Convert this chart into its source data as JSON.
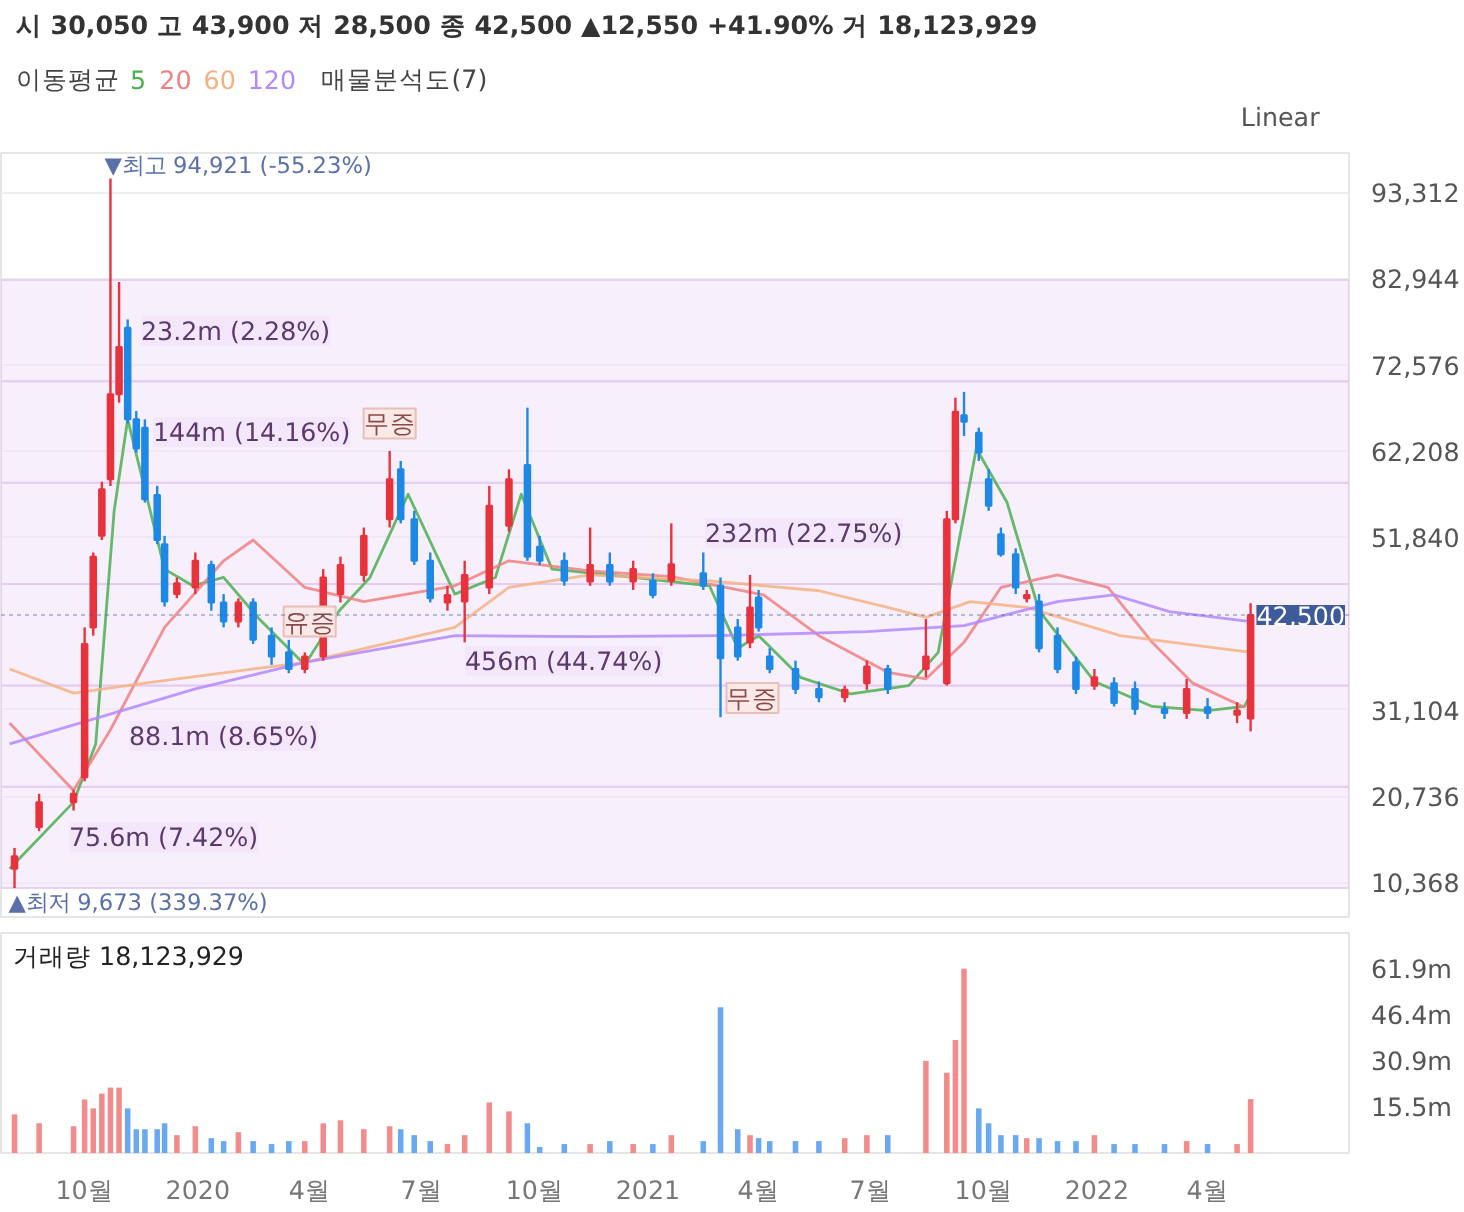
{
  "chart_data": [
    {
      "type": "candlestick",
      "subtitle": "시 30,050 고 43,900 저 28,500 종 42,500 ▲12,550 +41.90% 거 18,123,929",
      "legend_title": "이동평균",
      "legend": "top left",
      "grid": "y",
      "tick_labels": "y",
      "x": [
        "2019-08-05",
        "2019-08-25",
        "2019-09-22",
        "2019-10-01",
        "2019-10-08",
        "2019-10-15",
        "2019-10-22",
        "2019-10-29",
        "2019-11-05",
        "2019-11-12",
        "2019-11-19",
        "2019-11-29",
        "2019-12-05",
        "2019-12-15",
        "2019-12-30",
        "2020-01-12",
        "2020-01-22",
        "2020-02-03",
        "2020-02-15",
        "2020-03-01",
        "2020-03-15",
        "2020-03-28",
        "2020-04-12",
        "2020-04-26",
        "2020-05-15",
        "2020-06-05",
        "2020-06-14",
        "2020-06-25",
        "2020-07-08",
        "2020-07-22",
        "2020-08-05",
        "2020-08-25",
        "2020-09-10",
        "2020-09-25",
        "2020-10-05",
        "2020-10-25",
        "2020-11-15",
        "2020-12-01",
        "2020-12-20",
        "2021-01-05",
        "2021-01-20",
        "2021-02-15",
        "2021-03-01",
        "2021-03-15",
        "2021-03-25",
        "2021-04-01",
        "2021-04-10",
        "2021-05-01",
        "2021-05-20",
        "2021-06-10",
        "2021-06-28",
        "2021-07-15",
        "2021-08-15",
        "2021-09-01",
        "2021-09-08",
        "2021-09-15",
        "2021-09-27",
        "2021-10-05",
        "2021-10-15",
        "2021-10-27",
        "2021-11-05",
        "2021-11-15",
        "2021-11-30",
        "2021-12-15",
        "2021-12-30",
        "2022-01-15",
        "2022-02-01",
        "2022-02-25",
        "2022-03-15",
        "2022-04-01",
        "2022-04-25",
        "2022-05-06"
      ],
      "ohlc": [
        [
          12000,
          14500,
          9673,
          13500
        ],
        [
          17000,
          21000,
          16500,
          20000
        ],
        [
          20000,
          21500,
          19000,
          21000
        ],
        [
          23000,
          41000,
          22500,
          39000
        ],
        [
          41000,
          50000,
          40000,
          49500
        ],
        [
          52000,
          58500,
          51500,
          57600
        ],
        [
          58800,
          94921,
          58000,
          69000
        ],
        [
          69000,
          82500,
          68000,
          74700
        ],
        [
          77000,
          78000,
          65500,
          66000
        ],
        [
          66000,
          67000,
          62000,
          62500
        ],
        [
          65000,
          66000,
          56000,
          56400
        ],
        [
          56900,
          58000,
          51000,
          51500
        ],
        [
          51000,
          52000,
          43500,
          44100
        ],
        [
          45000,
          47000,
          44500,
          46300
        ],
        [
          45800,
          50000,
          45000,
          49000
        ],
        [
          48500,
          49000,
          43000,
          44000
        ],
        [
          44000,
          45000,
          41000,
          41700
        ],
        [
          41700,
          44500,
          41000,
          44000
        ],
        [
          44000,
          44500,
          39000,
          39500
        ],
        [
          40000,
          41000,
          36500,
          37500
        ],
        [
          38000,
          39500,
          35500,
          36000
        ],
        [
          36000,
          38000,
          35500,
          37500
        ],
        [
          37500,
          48000,
          37000,
          47000
        ],
        [
          45000,
          49500,
          44000,
          48500
        ],
        [
          47300,
          53000,
          46500,
          52000
        ],
        [
          54000,
          62200,
          53000,
          58800
        ],
        [
          60000,
          61000,
          53500,
          54000
        ],
        [
          54000,
          55000,
          48500,
          49000
        ],
        [
          49000,
          50000,
          44000,
          44500
        ],
        [
          44000,
          46000,
          43000,
          44900
        ],
        [
          44100,
          49000,
          39200,
          47300
        ],
        [
          45800,
          58000,
          45000,
          55600
        ],
        [
          53200,
          60000,
          52500,
          58800
        ],
        [
          60500,
          67400,
          49000,
          49500
        ],
        [
          50700,
          52000,
          48500,
          49000
        ],
        [
          49000,
          50000,
          46000,
          46600
        ],
        [
          46500,
          53000,
          46000,
          48500
        ],
        [
          48500,
          50000,
          46000,
          46500
        ],
        [
          46500,
          49000,
          45500,
          48000
        ],
        [
          46600,
          47500,
          44500,
          44900
        ],
        [
          46600,
          53500,
          46000,
          48600
        ],
        [
          47500,
          50000,
          45500,
          46000
        ],
        [
          46000,
          47000,
          30200,
          37300
        ],
        [
          41000,
          42000,
          37000,
          37500
        ],
        [
          39200,
          47300,
          38500,
          43400
        ],
        [
          44600,
          45500,
          40500,
          41000
        ],
        [
          37500,
          38500,
          35500,
          36000
        ],
        [
          36000,
          37000,
          33000,
          33600
        ],
        [
          33600,
          34500,
          32000,
          32600
        ],
        [
          32600,
          34000,
          32000,
          33500
        ],
        [
          34300,
          37000,
          33500,
          36300
        ],
        [
          36000,
          36500,
          33000,
          33600
        ],
        [
          36000,
          42000,
          35000,
          37500
        ],
        [
          34300,
          55000,
          34000,
          54000
        ],
        [
          54000,
          68600,
          53500,
          66900
        ],
        [
          66500,
          69300,
          64000,
          65700
        ],
        [
          64400,
          65000,
          61000,
          62000
        ],
        [
          58800,
          60000,
          55000,
          55600
        ],
        [
          52200,
          53000,
          49500,
          49800
        ],
        [
          49800,
          50500,
          45000,
          45800
        ],
        [
          44500,
          45500,
          44000,
          44900
        ],
        [
          44100,
          45000,
          38000,
          38500
        ],
        [
          40000,
          41000,
          35500,
          36000
        ],
        [
          36800,
          37500,
          33000,
          33600
        ],
        [
          34000,
          36000,
          33500,
          35000
        ],
        [
          34300,
          35000,
          31500,
          31900
        ],
        [
          33600,
          34500,
          30500,
          31200
        ],
        [
          31200,
          32000,
          30000,
          30700
        ],
        [
          30700,
          34800,
          30000,
          33600
        ],
        [
          31400,
          32500,
          30000,
          30700
        ],
        [
          30500,
          32000,
          29500,
          31000
        ],
        [
          30050,
          43900,
          28500,
          42500
        ]
      ],
      "colors": [
        "#e8323c",
        "#e8323c",
        "#e8323c",
        "#e8323c",
        "#e8323c",
        "#e8323c",
        "#e8323c",
        "#e8323c",
        "#1e88e5",
        "#1e88e5",
        "#1e88e5",
        "#1e88e5",
        "#1e88e5",
        "#e8323c",
        "#e8323c",
        "#1e88e5",
        "#1e88e5",
        "#e8323c",
        "#1e88e5",
        "#1e88e5",
        "#1e88e5",
        "#e8323c",
        "#e8323c",
        "#e8323c",
        "#e8323c",
        "#e8323c",
        "#1e88e5",
        "#1e88e5",
        "#1e88e5",
        "#e8323c",
        "#e8323c",
        "#e8323c",
        "#e8323c",
        "#1e88e5",
        "#1e88e5",
        "#1e88e5",
        "#e8323c",
        "#1e88e5",
        "#e8323c",
        "#1e88e5",
        "#e8323c",
        "#1e88e5",
        "#1e88e5",
        "#1e88e5",
        "#e8323c",
        "#1e88e5",
        "#1e88e5",
        "#1e88e5",
        "#1e88e5",
        "#e8323c",
        "#e8323c",
        "#1e88e5",
        "#e8323c",
        "#e8323c",
        "#e8323c",
        "#1e88e5",
        "#1e88e5",
        "#1e88e5",
        "#1e88e5",
        "#1e88e5",
        "#e8323c",
        "#1e88e5",
        "#1e88e5",
        "#1e88e5",
        "#e8323c",
        "#1e88e5",
        "#1e88e5",
        "#1e88e5",
        "#e8323c",
        "#1e88e5",
        "#e8323c",
        "#e8323c"
      ],
      "series": [
        {
          "name": "5",
          "type": "line",
          "color": "#4caf50",
          "x": [
            "2019-08-01",
            "2019-09-22",
            "2019-10-10",
            "2019-10-25",
            "2019-11-05",
            "2019-12-05",
            "2019-12-28",
            "2020-01-22",
            "2020-02-20",
            "2020-03-28",
            "2020-04-25",
            "2020-05-20",
            "2020-06-20",
            "2020-07-28",
            "2020-08-30",
            "2020-09-20",
            "2020-10-15",
            "2020-12-20",
            "2021-02-20",
            "2021-03-15",
            "2021-04-01",
            "2021-05-05",
            "2021-06-15",
            "2021-08-01",
            "2021-08-25",
            "2021-09-25",
            "2021-10-20",
            "2021-11-15",
            "2021-12-30",
            "2022-02-15",
            "2022-04-01",
            "2022-05-01",
            "2022-05-06"
          ],
          "values": [
            12000,
            20000,
            27000,
            55000,
            66000,
            48000,
            46000,
            47000,
            42000,
            36500,
            43000,
            47000,
            57000,
            45000,
            47000,
            57000,
            48000,
            47000,
            46000,
            38500,
            40000,
            35000,
            33000,
            34000,
            38000,
            62500,
            56000,
            43000,
            34500,
            31500,
            31000,
            31500,
            33000
          ]
        },
        {
          "name": "20",
          "type": "line",
          "color": "#f08080",
          "x": [
            "2019-08-01",
            "2019-09-22",
            "2019-10-22",
            "2019-12-05",
            "2020-01-22",
            "2020-02-15",
            "2020-03-28",
            "2020-05-15",
            "2020-07-28",
            "2020-09-10",
            "2020-11-15",
            "2021-01-20",
            "2021-04-05",
            "2021-05-20",
            "2021-07-15",
            "2021-08-15",
            "2021-09-15",
            "2021-10-15",
            "2021-11-30",
            "2022-01-10",
            "2022-02-15",
            "2022-03-20",
            "2022-05-01"
          ],
          "values": [
            29500,
            21400,
            28700,
            41000,
            49000,
            51500,
            45800,
            44100,
            46000,
            49000,
            47800,
            47100,
            44900,
            40000,
            35600,
            34800,
            39200,
            45800,
            47300,
            45800,
            39200,
            34300,
            31400
          ]
        },
        {
          "name": "60",
          "type": "line",
          "color": "#f4b183",
          "x": [
            "2019-08-01",
            "2019-09-22",
            "2019-11-19",
            "2020-03-28",
            "2020-07-28",
            "2020-09-10",
            "2020-11-15",
            "2021-02-20",
            "2021-05-20",
            "2021-07-15",
            "2021-08-15",
            "2021-09-20",
            "2021-11-05",
            "2022-01-20",
            "2022-05-06"
          ],
          "values": [
            36000,
            33100,
            34300,
            36800,
            41000,
            45800,
            47300,
            46600,
            45400,
            43400,
            42200,
            44100,
            43400,
            40000,
            38000
          ]
        },
        {
          "name": "120",
          "type": "line",
          "color": "#b388ff",
          "x": [
            "2019-08-01",
            "2019-12-30",
            "2020-03-28",
            "2020-07-28",
            "2020-11-15",
            "2021-03-01",
            "2021-06-28",
            "2021-09-15",
            "2021-11-30",
            "2022-01-15",
            "2022-03-01",
            "2022-05-06"
          ],
          "values": [
            27000,
            33600,
            36800,
            40000,
            39900,
            40000,
            40500,
            41200,
            44100,
            44900,
            42900,
            41700
          ]
        }
      ],
      "bands": [
        {
          "axis": "y",
          "from": 9673,
          "to": 21851,
          "label": "75.6m (7.42%)",
          "color": "#f3e5fb"
        },
        {
          "axis": "y",
          "from": 21851,
          "to": 34029,
          "label": "88.1m (8.65%)",
          "color": "#f3e5fb"
        },
        {
          "axis": "y",
          "from": 34029,
          "to": 46207,
          "label": "456m (44.74%)",
          "color": "#f3e5fb"
        },
        {
          "axis": "y",
          "from": 46207,
          "to": 58385,
          "label": "232m (22.75%)",
          "color": "#f3e5fb"
        },
        {
          "axis": "y",
          "from": 58385,
          "to": 70563,
          "label": "144m (14.16%)",
          "color": "#f3e5fb"
        },
        {
          "axis": "y",
          "from": 70563,
          "to": 82741,
          "label": "23.2m (2.28%)",
          "color": "#f3e5fb"
        }
      ],
      "ref_lines": [
        {
          "axis": "y",
          "value": 42500,
          "label": "42,500",
          "color": "#3f5a9a"
        }
      ],
      "annotations": [
        {
          "text": "▼최고 94,921 (-55.23%)",
          "x": "2019-10-22",
          "y": 94921
        },
        {
          "text": "▲최저 9,673 (339.37%)",
          "x": "2019-08-05",
          "y": 9673
        },
        {
          "text": "유증",
          "x": "2020-04-01",
          "y": 41700
        },
        {
          "text": "무증",
          "x": "2020-06-05",
          "y": 65500
        },
        {
          "text": "무증",
          "x": "2021-03-27",
          "y": 32500
        },
        "매물분석도(7)",
        "Linear"
      ],
      "xlim": [
        "2019-07-25",
        "2022-07-25"
      ],
      "ylim": [
        6200,
        98000
      ],
      "yticks": [
        {
          "value": 10368,
          "label": "10,368"
        },
        {
          "value": 20736,
          "label": "20,736"
        },
        {
          "value": 31104,
          "label": "31,104"
        },
        {
          "value": 51840,
          "label": "51,840"
        },
        {
          "value": 62208,
          "label": "62,208"
        },
        {
          "value": 72576,
          "label": "72,576"
        },
        {
          "value": 82944,
          "label": "82,944"
        },
        {
          "value": 93312,
          "label": "93,312"
        }
      ]
    },
    {
      "type": "bar",
      "title": "거래량 18,123,929",
      "x": [
        "2019-08-05",
        "2019-08-25",
        "2019-09-22",
        "2019-10-01",
        "2019-10-08",
        "2019-10-15",
        "2019-10-22",
        "2019-10-29",
        "2019-11-05",
        "2019-11-12",
        "2019-11-19",
        "2019-11-29",
        "2019-12-05",
        "2019-12-15",
        "2019-12-30",
        "2020-01-12",
        "2020-01-22",
        "2020-02-03",
        "2020-02-15",
        "2020-03-01",
        "2020-03-15",
        "2020-03-28",
        "2020-04-12",
        "2020-04-26",
        "2020-05-15",
        "2020-06-05",
        "2020-06-14",
        "2020-06-25",
        "2020-07-08",
        "2020-07-22",
        "2020-08-05",
        "2020-08-25",
        "2020-09-10",
        "2020-09-25",
        "2020-10-05",
        "2020-10-25",
        "2020-11-15",
        "2020-12-01",
        "2020-12-20",
        "2021-01-05",
        "2021-01-20",
        "2021-02-15",
        "2021-03-01",
        "2021-03-15",
        "2021-03-25",
        "2021-04-01",
        "2021-04-10",
        "2021-05-01",
        "2021-05-20",
        "2021-06-10",
        "2021-06-28",
        "2021-07-15",
        "2021-08-15",
        "2021-09-01",
        "2021-09-08",
        "2021-09-15",
        "2021-09-27",
        "2021-10-05",
        "2021-10-15",
        "2021-10-27",
        "2021-11-05",
        "2021-11-15",
        "2021-11-30",
        "2021-12-15",
        "2021-12-30",
        "2022-01-15",
        "2022-02-01",
        "2022-02-25",
        "2022-03-15",
        "2022-04-01",
        "2022-04-25",
        "2022-05-06"
      ],
      "values": [
        13,
        10,
        9,
        18,
        15,
        20,
        22,
        22,
        15,
        8,
        8,
        8,
        10,
        6,
        9,
        5,
        4,
        7,
        4,
        3,
        4,
        4,
        10,
        11,
        8,
        9,
        8,
        6,
        4,
        3,
        6,
        17,
        14,
        10,
        2,
        3,
        3,
        4,
        3,
        3,
        6,
        4,
        49,
        8,
        6,
        5,
        4,
        4,
        4,
        5,
        6,
        6,
        31,
        27,
        38,
        62,
        15,
        10,
        6,
        6,
        5,
        5,
        4,
        4,
        6,
        3,
        3,
        3,
        4,
        3,
        3,
        18.1
      ],
      "colors": [
        "#f28b8b",
        "#f28b8b",
        "#f28b8b",
        "#f28b8b",
        "#f28b8b",
        "#f28b8b",
        "#f28b8b",
        "#f28b8b",
        "#6aa8f0",
        "#6aa8f0",
        "#6aa8f0",
        "#6aa8f0",
        "#6aa8f0",
        "#f28b8b",
        "#f28b8b",
        "#6aa8f0",
        "#6aa8f0",
        "#f28b8b",
        "#6aa8f0",
        "#6aa8f0",
        "#6aa8f0",
        "#f28b8b",
        "#f28b8b",
        "#f28b8b",
        "#f28b8b",
        "#f28b8b",
        "#6aa8f0",
        "#6aa8f0",
        "#6aa8f0",
        "#f28b8b",
        "#f28b8b",
        "#f28b8b",
        "#f28b8b",
        "#6aa8f0",
        "#6aa8f0",
        "#6aa8f0",
        "#f28b8b",
        "#6aa8f0",
        "#f28b8b",
        "#6aa8f0",
        "#f28b8b",
        "#6aa8f0",
        "#6aa8f0",
        "#6aa8f0",
        "#f28b8b",
        "#6aa8f0",
        "#6aa8f0",
        "#6aa8f0",
        "#6aa8f0",
        "#f28b8b",
        "#f28b8b",
        "#6aa8f0",
        "#f28b8b",
        "#f28b8b",
        "#f28b8b",
        "#f28b8b",
        "#6aa8f0",
        "#6aa8f0",
        "#6aa8f0",
        "#6aa8f0",
        "#f28b8b",
        "#6aa8f0",
        "#6aa8f0",
        "#6aa8f0",
        "#f28b8b",
        "#6aa8f0",
        "#6aa8f0",
        "#6aa8f0",
        "#f28b8b",
        "#6aa8f0",
        "#f28b8b",
        "#f28b8b"
      ],
      "xlim": [
        "2019-07-25",
        "2022-07-25"
      ],
      "ylim": [
        0,
        74
      ],
      "grid": false,
      "yticks": [
        {
          "value": 15.5,
          "label": "15.5m"
        },
        {
          "value": 30.9,
          "label": "30.9m"
        },
        {
          "value": 46.4,
          "label": "46.4m"
        },
        {
          "value": 61.9,
          "label": "61.9m"
        }
      ],
      "xticks": [
        {
          "value": "2019-10-01",
          "label": "10월"
        },
        {
          "value": "2020-01-01",
          "label": "2020"
        },
        {
          "value": "2020-04-01",
          "label": "4월"
        },
        {
          "value": "2020-07-01",
          "label": "7월"
        },
        {
          "value": "2020-10-01",
          "label": "10월"
        },
        {
          "value": "2021-01-01",
          "label": "2021"
        },
        {
          "value": "2021-04-01",
          "label": "4월"
        },
        {
          "value": "2021-07-01",
          "label": "7월"
        },
        {
          "value": "2021-10-01",
          "label": "10월"
        },
        {
          "value": "2022-01-01",
          "label": "2022"
        },
        {
          "value": "2022-04-01",
          "label": "4월"
        }
      ]
    }
  ]
}
